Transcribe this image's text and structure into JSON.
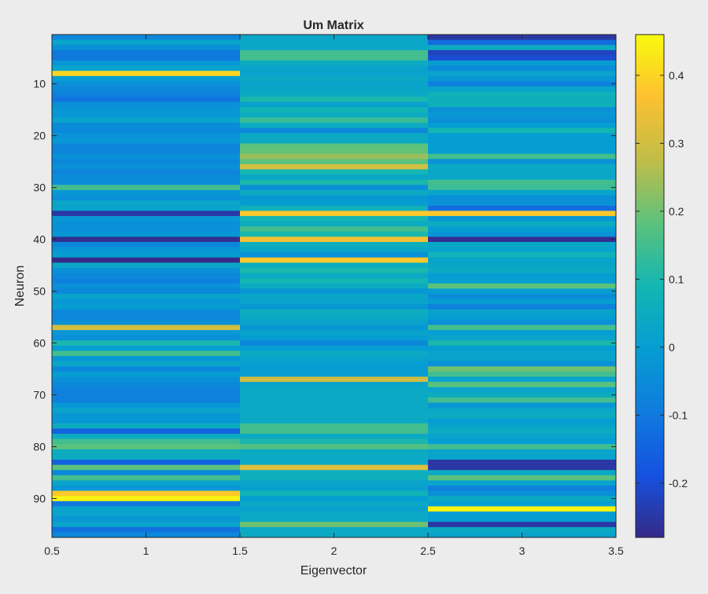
{
  "chart_data": {
    "type": "heatmap",
    "title": "Um Matrix",
    "xlabel": "Eigenvector",
    "ylabel": "Neuron",
    "xlim": [
      0.5,
      3.5
    ],
    "ylim": [
      0.5,
      97.5
    ],
    "y_reversed": true,
    "x_ticks": [
      "0.5",
      "1",
      "1.5",
      "2",
      "2.5",
      "3",
      "3.5"
    ],
    "y_ticks": [
      "10",
      "20",
      "30",
      "40",
      "50",
      "60",
      "70",
      "80",
      "90"
    ],
    "colormap": "parula",
    "clim": [
      -0.28,
      0.46
    ],
    "colorbar_ticks": [
      "0.4",
      "0.3",
      "0.2",
      "0.1",
      "0",
      "-0.1",
      "-0.2"
    ],
    "columns": [
      "1",
      "2",
      "3"
    ],
    "rows": 97,
    "values": [
      [
        -0.06,
        0.03,
        -0.25
      ],
      [
        0.02,
        0.03,
        -0.13
      ],
      [
        -0.04,
        0.03,
        0.05
      ],
      [
        -0.1,
        0.15,
        -0.22
      ],
      [
        -0.1,
        0.15,
        -0.2
      ],
      [
        -0.02,
        0.05,
        0.0
      ],
      [
        0.02,
        0.02,
        -0.05
      ],
      [
        0.4,
        0.02,
        0.02
      ],
      [
        0.0,
        0.04,
        -0.02
      ],
      [
        -0.04,
        0.02,
        -0.08
      ],
      [
        -0.06,
        0.03,
        0.02
      ],
      [
        -0.08,
        0.04,
        0.07
      ],
      [
        -0.11,
        0.1,
        0.06
      ],
      [
        -0.04,
        0.01,
        0.07
      ],
      [
        -0.02,
        0.08,
        -0.04
      ],
      [
        -0.02,
        0.05,
        -0.02
      ],
      [
        0.02,
        0.14,
        -0.04
      ],
      [
        -0.05,
        0.05,
        0.0
      ],
      [
        -0.06,
        -0.06,
        0.09
      ],
      [
        -0.03,
        0.04,
        0.0
      ],
      [
        -0.02,
        0.04,
        0.0
      ],
      [
        -0.07,
        0.18,
        0.0
      ],
      [
        -0.07,
        0.19,
        0.0
      ],
      [
        -0.04,
        0.24,
        0.15
      ],
      [
        -0.06,
        0.18,
        -0.03
      ],
      [
        -0.04,
        0.3,
        0.04
      ],
      [
        -0.07,
        0.09,
        0.03
      ],
      [
        -0.05,
        0.03,
        0.03
      ],
      [
        -0.05,
        0.1,
        0.15
      ],
      [
        0.15,
        -0.04,
        0.14
      ],
      [
        -0.02,
        0.05,
        0.02
      ],
      [
        -0.04,
        -0.02,
        -0.04
      ],
      [
        0.03,
        0.0,
        -0.04
      ],
      [
        0.02,
        0.07,
        -0.13
      ],
      [
        -0.25,
        0.38,
        0.38
      ],
      [
        -0.02,
        0.09,
        -0.02
      ],
      [
        -0.04,
        0.05,
        0.05
      ],
      [
        -0.04,
        0.15,
        0.0
      ],
      [
        -0.02,
        0.1,
        -0.03
      ],
      [
        -0.27,
        0.36,
        -0.27
      ],
      [
        -0.06,
        0.06,
        0.03
      ],
      [
        -0.02,
        0.03,
        0.02
      ],
      [
        0.0,
        -0.04,
        0.08
      ],
      [
        -0.28,
        0.38,
        0.02
      ],
      [
        0.03,
        0.05,
        0.03
      ],
      [
        -0.04,
        0.1,
        0.04
      ],
      [
        -0.06,
        0.04,
        0.0
      ],
      [
        -0.08,
        0.09,
        0.0
      ],
      [
        -0.04,
        0.05,
        0.18
      ],
      [
        -0.06,
        -0.02,
        0.0
      ],
      [
        0.02,
        0.03,
        -0.05
      ],
      [
        -0.02,
        0.02,
        0.0
      ],
      [
        0.0,
        -0.02,
        -0.08
      ],
      [
        -0.06,
        0.06,
        0.02
      ],
      [
        -0.06,
        0.04,
        0.0
      ],
      [
        -0.04,
        0.02,
        -0.04
      ],
      [
        0.3,
        -0.02,
        0.15
      ],
      [
        -0.02,
        0.02,
        0.0
      ],
      [
        -0.04,
        0.0,
        0.02
      ],
      [
        0.1,
        -0.06,
        0.1
      ],
      [
        0.0,
        0.0,
        0.0
      ],
      [
        0.15,
        0.04,
        0.02
      ],
      [
        -0.02,
        0.02,
        0.02
      ],
      [
        0.03,
        0.0,
        -0.04
      ],
      [
        -0.06,
        0.0,
        0.2
      ],
      [
        0.0,
        0.0,
        0.15
      ],
      [
        -0.04,
        0.3,
        0.02
      ],
      [
        -0.06,
        0.02,
        0.18
      ],
      [
        -0.08,
        0.04,
        0.02
      ],
      [
        -0.08,
        0.04,
        0.05
      ],
      [
        -0.08,
        0.04,
        0.15
      ],
      [
        -0.02,
        0.04,
        -0.02
      ],
      [
        0.02,
        0.04,
        0.03
      ],
      [
        -0.02,
        0.04,
        0.05
      ],
      [
        -0.02,
        0.04,
        0.0
      ],
      [
        0.05,
        0.15,
        0.02
      ],
      [
        -0.15,
        0.15,
        0.05
      ],
      [
        0.05,
        0.04,
        0.02
      ],
      [
        0.15,
        0.1,
        0.0
      ],
      [
        0.18,
        0.17,
        0.15
      ],
      [
        0.05,
        0.04,
        0.02
      ],
      [
        0.05,
        0.04,
        0.02
      ],
      [
        -0.15,
        0.04,
        -0.25
      ],
      [
        0.18,
        0.32,
        -0.25
      ],
      [
        -0.06,
        0.06,
        0.04
      ],
      [
        0.15,
        0.06,
        0.18
      ],
      [
        0.02,
        0.02,
        0.02
      ],
      [
        -0.02,
        0.01,
        -0.08
      ],
      [
        0.38,
        0.08,
        -0.04
      ],
      [
        0.45,
        0.0,
        0.04
      ],
      [
        -0.1,
        0.04,
        0.0
      ],
      [
        0.02,
        0.01,
        0.45
      ],
      [
        0.02,
        0.04,
        0.0
      ],
      [
        -0.02,
        0.04,
        0.0
      ],
      [
        0.02,
        0.2,
        -0.25
      ],
      [
        -0.12,
        0.04,
        0.04
      ],
      [
        -0.06,
        0.04,
        0.02
      ]
    ]
  }
}
